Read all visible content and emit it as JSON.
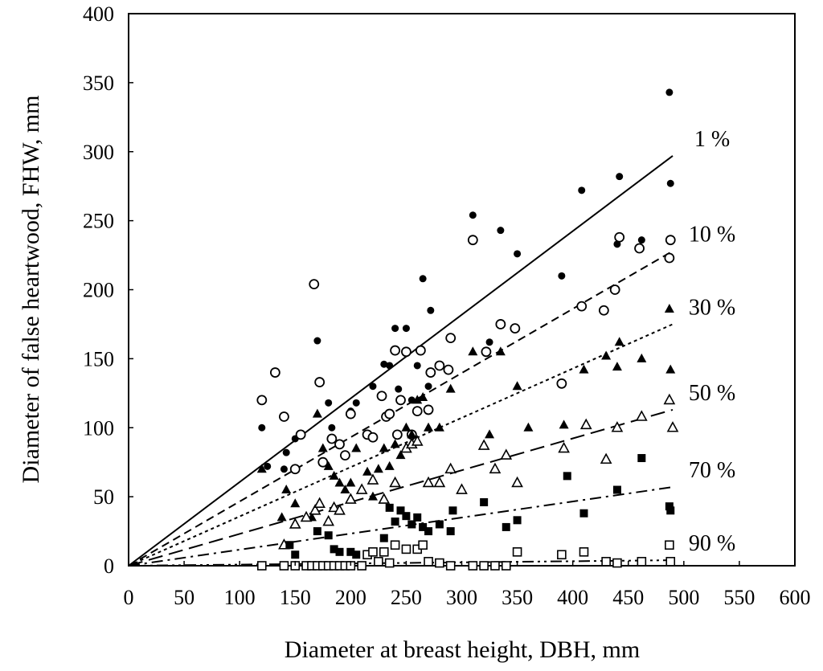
{
  "chart_data": {
    "type": "scatter",
    "title": "",
    "xlabel": "Diameter at breast height, DBH, mm",
    "ylabel": "Diameter of false heartwood, FHW, mm",
    "xlim": [
      0,
      600
    ],
    "ylim": [
      0,
      400
    ],
    "xticks": [
      0,
      50,
      100,
      150,
      200,
      250,
      300,
      350,
      400,
      450,
      500,
      550,
      600
    ],
    "yticks": [
      0,
      50,
      100,
      150,
      200,
      250,
      300,
      350,
      400
    ],
    "xtick_labels": [
      "0",
      "50",
      "100",
      "150",
      "200",
      "250",
      "300",
      "350",
      "400",
      "450",
      "500",
      "550",
      "600"
    ],
    "ytick_labels": [
      "0",
      "50",
      "100",
      "150",
      "200",
      "250",
      "300",
      "350",
      "400"
    ],
    "grid": false,
    "series": [
      {
        "name": "1 %",
        "marker": "filled-circle",
        "line_style": "solid",
        "fit": {
          "x0": 0,
          "y0": 0,
          "x1": 490,
          "y1": 297
        },
        "points": [
          [
            120,
            100
          ],
          [
            125,
            72
          ],
          [
            140,
            70
          ],
          [
            142,
            82
          ],
          [
            150,
            92
          ],
          [
            170,
            163
          ],
          [
            180,
            118
          ],
          [
            183,
            100
          ],
          [
            200,
            112
          ],
          [
            205,
            118
          ],
          [
            220,
            130
          ],
          [
            230,
            146
          ],
          [
            235,
            145
          ],
          [
            240,
            172
          ],
          [
            243,
            128
          ],
          [
            250,
            172
          ],
          [
            255,
            120
          ],
          [
            260,
            145
          ],
          [
            265,
            208
          ],
          [
            270,
            130
          ],
          [
            272,
            185
          ],
          [
            290,
            165
          ],
          [
            310,
            254
          ],
          [
            325,
            162
          ],
          [
            335,
            243
          ],
          [
            350,
            226
          ],
          [
            390,
            210
          ],
          [
            408,
            272
          ],
          [
            440,
            233
          ],
          [
            442,
            282
          ],
          [
            462,
            236
          ],
          [
            487,
            343
          ],
          [
            488,
            277
          ]
        ]
      },
      {
        "name": "10 %",
        "marker": "open-circle",
        "line_style": "dashed",
        "fit": {
          "x0": 0,
          "y0": 0,
          "x1": 490,
          "y1": 228
        },
        "points": [
          [
            120,
            120
          ],
          [
            132,
            140
          ],
          [
            140,
            108
          ],
          [
            150,
            70
          ],
          [
            155,
            95
          ],
          [
            167,
            204
          ],
          [
            172,
            133
          ],
          [
            175,
            75
          ],
          [
            183,
            92
          ],
          [
            190,
            88
          ],
          [
            195,
            80
          ],
          [
            200,
            110
          ],
          [
            215,
            95
          ],
          [
            220,
            93
          ],
          [
            228,
            123
          ],
          [
            232,
            108
          ],
          [
            235,
            110
          ],
          [
            240,
            156
          ],
          [
            242,
            95
          ],
          [
            245,
            120
          ],
          [
            250,
            155
          ],
          [
            255,
            95
          ],
          [
            260,
            112
          ],
          [
            263,
            156
          ],
          [
            270,
            113
          ],
          [
            272,
            140
          ],
          [
            280,
            145
          ],
          [
            288,
            142
          ],
          [
            290,
            165
          ],
          [
            310,
            236
          ],
          [
            322,
            155
          ],
          [
            335,
            175
          ],
          [
            348,
            172
          ],
          [
            390,
            132
          ],
          [
            408,
            188
          ],
          [
            428,
            185
          ],
          [
            438,
            200
          ],
          [
            442,
            238
          ],
          [
            460,
            230
          ],
          [
            487,
            223
          ],
          [
            488,
            236
          ]
        ]
      },
      {
        "name": "30 %",
        "marker": "filled-triangle",
        "line_style": "dotted",
        "fit": {
          "x0": 0,
          "y0": 0,
          "x1": 490,
          "y1": 175
        },
        "points": [
          [
            120,
            70
          ],
          [
            138,
            35
          ],
          [
            142,
            55
          ],
          [
            150,
            45
          ],
          [
            165,
            35
          ],
          [
            170,
            110
          ],
          [
            175,
            85
          ],
          [
            180,
            72
          ],
          [
            185,
            65
          ],
          [
            190,
            60
          ],
          [
            195,
            55
          ],
          [
            200,
            60
          ],
          [
            205,
            85
          ],
          [
            215,
            68
          ],
          [
            220,
            50
          ],
          [
            225,
            70
          ],
          [
            230,
            85
          ],
          [
            235,
            72
          ],
          [
            240,
            88
          ],
          [
            245,
            80
          ],
          [
            250,
            100
          ],
          [
            255,
            95
          ],
          [
            260,
            120
          ],
          [
            265,
            122
          ],
          [
            270,
            100
          ],
          [
            280,
            100
          ],
          [
            290,
            128
          ],
          [
            310,
            155
          ],
          [
            325,
            95
          ],
          [
            335,
            155
          ],
          [
            350,
            130
          ],
          [
            360,
            100
          ],
          [
            392,
            102
          ],
          [
            410,
            142
          ],
          [
            430,
            152
          ],
          [
            440,
            144
          ],
          [
            442,
            162
          ],
          [
            462,
            150
          ],
          [
            487,
            186
          ],
          [
            488,
            142
          ]
        ]
      },
      {
        "name": "50 %",
        "marker": "open-triangle",
        "line_style": "long-dashed",
        "fit": {
          "x0": 0,
          "y0": 0,
          "x1": 490,
          "y1": 113
        },
        "points": [
          [
            140,
            15
          ],
          [
            150,
            30
          ],
          [
            160,
            35
          ],
          [
            168,
            40
          ],
          [
            172,
            45
          ],
          [
            180,
            32
          ],
          [
            185,
            42
          ],
          [
            190,
            40
          ],
          [
            200,
            48
          ],
          [
            210,
            55
          ],
          [
            220,
            62
          ],
          [
            230,
            48
          ],
          [
            240,
            60
          ],
          [
            250,
            85
          ],
          [
            255,
            88
          ],
          [
            260,
            90
          ],
          [
            270,
            60
          ],
          [
            280,
            60
          ],
          [
            290,
            70
          ],
          [
            300,
            55
          ],
          [
            320,
            87
          ],
          [
            330,
            70
          ],
          [
            340,
            80
          ],
          [
            350,
            60
          ],
          [
            392,
            85
          ],
          [
            412,
            102
          ],
          [
            430,
            77
          ],
          [
            440,
            100
          ],
          [
            462,
            108
          ],
          [
            487,
            120
          ],
          [
            490,
            100
          ]
        ]
      },
      {
        "name": "70 %",
        "marker": "filled-square",
        "line_style": "dash-dot",
        "fit": {
          "x0": 0,
          "y0": 0,
          "x1": 490,
          "y1": 57
        },
        "points": [
          [
            145,
            15
          ],
          [
            150,
            8
          ],
          [
            170,
            25
          ],
          [
            180,
            22
          ],
          [
            185,
            12
          ],
          [
            190,
            10
          ],
          [
            200,
            10
          ],
          [
            205,
            8
          ],
          [
            230,
            20
          ],
          [
            235,
            42
          ],
          [
            240,
            32
          ],
          [
            245,
            40
          ],
          [
            250,
            36
          ],
          [
            255,
            30
          ],
          [
            260,
            35
          ],
          [
            265,
            28
          ],
          [
            270,
            25
          ],
          [
            280,
            30
          ],
          [
            290,
            25
          ],
          [
            292,
            40
          ],
          [
            320,
            46
          ],
          [
            340,
            28
          ],
          [
            350,
            33
          ],
          [
            395,
            65
          ],
          [
            410,
            38
          ],
          [
            440,
            55
          ],
          [
            462,
            78
          ],
          [
            487,
            43
          ],
          [
            488,
            40
          ]
        ]
      },
      {
        "name": "90 %",
        "marker": "open-square",
        "line_style": "dash-dot-dot",
        "fit": {
          "x0": 0,
          "y0": 0,
          "x1": 490,
          "y1": 4
        },
        "points": [
          [
            120,
            0
          ],
          [
            140,
            0
          ],
          [
            150,
            0
          ],
          [
            160,
            0
          ],
          [
            165,
            0
          ],
          [
            170,
            0
          ],
          [
            175,
            0
          ],
          [
            180,
            0
          ],
          [
            185,
            0
          ],
          [
            190,
            0
          ],
          [
            195,
            0
          ],
          [
            200,
            0
          ],
          [
            210,
            0
          ],
          [
            215,
            8
          ],
          [
            220,
            10
          ],
          [
            225,
            3
          ],
          [
            230,
            10
          ],
          [
            235,
            2
          ],
          [
            240,
            15
          ],
          [
            250,
            12
          ],
          [
            260,
            12
          ],
          [
            265,
            15
          ],
          [
            270,
            3
          ],
          [
            280,
            2
          ],
          [
            290,
            0
          ],
          [
            310,
            0
          ],
          [
            320,
            0
          ],
          [
            330,
            0
          ],
          [
            340,
            0
          ],
          [
            350,
            10
          ],
          [
            390,
            8
          ],
          [
            410,
            10
          ],
          [
            430,
            3
          ],
          [
            440,
            2
          ],
          [
            462,
            3
          ],
          [
            487,
            15
          ],
          [
            488,
            3
          ]
        ]
      }
    ]
  }
}
